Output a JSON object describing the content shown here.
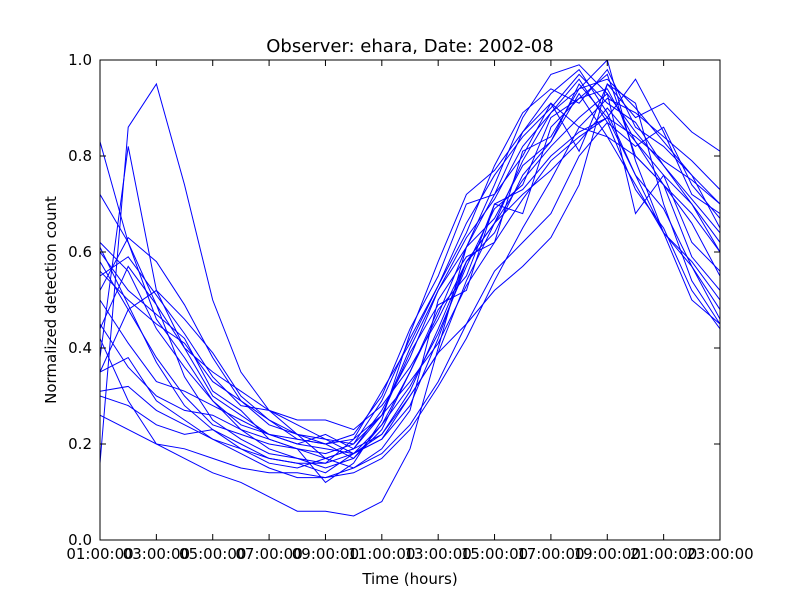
{
  "chart_data": {
    "type": "line",
    "title": "Observer: ehara, Date: 2002-08",
    "xlabel": "Time (hours)",
    "ylabel": "Normalized detection count",
    "xlim": [
      1,
      23
    ],
    "ylim": [
      0.0,
      1.0
    ],
    "x_tick_labels": [
      "01:00:00",
      "03:00:00",
      "05:00:00",
      "07:00:00",
      "09:00:00",
      "11:00:00",
      "13:00:00",
      "15:00:00",
      "17:00:00",
      "19:00:00",
      "21:00:00",
      "23:00:00"
    ],
    "y_tick_labels": [
      "0.0",
      "0.2",
      "0.4",
      "0.6",
      "0.8",
      "1.0"
    ],
    "x": [
      1,
      2,
      3,
      4,
      5,
      6,
      7,
      8,
      9,
      10,
      11,
      12,
      13,
      14,
      15,
      16,
      17,
      18,
      19,
      20,
      21,
      22,
      23
    ],
    "grid": false,
    "line_color": "#0000ff",
    "series": [
      {
        "values": [
          0.62,
          0.56,
          0.44,
          0.36,
          0.29,
          0.24,
          0.22,
          0.2,
          0.19,
          0.18,
          0.21,
          0.28,
          0.42,
          0.58,
          0.66,
          0.75,
          0.82,
          0.88,
          0.93,
          0.85,
          0.78,
          0.7,
          0.6
        ]
      },
      {
        "values": [
          0.35,
          0.48,
          0.52,
          0.4,
          0.3,
          0.26,
          0.22,
          0.21,
          0.2,
          0.17,
          0.24,
          0.35,
          0.48,
          0.55,
          0.7,
          0.68,
          0.86,
          0.92,
          0.97,
          0.8,
          0.74,
          0.66,
          0.55
        ]
      },
      {
        "values": [
          0.58,
          0.48,
          0.38,
          0.3,
          0.24,
          0.22,
          0.2,
          0.19,
          0.18,
          0.2,
          0.26,
          0.4,
          0.52,
          0.63,
          0.71,
          0.82,
          0.89,
          0.94,
          0.96,
          0.9,
          0.83,
          0.76,
          0.65
        ]
      },
      {
        "values": [
          0.45,
          0.36,
          0.3,
          0.27,
          0.26,
          0.23,
          0.21,
          0.19,
          0.17,
          0.19,
          0.22,
          0.31,
          0.44,
          0.58,
          0.64,
          0.76,
          0.83,
          0.95,
          0.88,
          0.76,
          0.69,
          0.57,
          0.48
        ]
      },
      {
        "values": [
          0.72,
          0.62,
          0.49,
          0.34,
          0.25,
          0.21,
          0.18,
          0.17,
          0.15,
          0.17,
          0.23,
          0.35,
          0.47,
          0.61,
          0.72,
          0.8,
          0.91,
          0.86,
          0.84,
          0.74,
          0.64,
          0.58,
          0.5
        ]
      },
      {
        "values": [
          0.3,
          0.28,
          0.24,
          0.22,
          0.23,
          0.2,
          0.17,
          0.16,
          0.14,
          0.18,
          0.21,
          0.3,
          0.39,
          0.54,
          0.66,
          0.72,
          0.77,
          0.83,
          0.9,
          0.83,
          0.76,
          0.7,
          0.62
        ]
      },
      {
        "values": [
          0.16,
          0.86,
          0.95,
          0.74,
          0.5,
          0.35,
          0.27,
          0.22,
          0.17,
          0.15,
          0.19,
          0.27,
          0.5,
          0.59,
          0.62,
          0.81,
          0.84,
          0.94,
          1.0,
          0.79,
          0.64,
          0.57,
          0.46
        ]
      },
      {
        "values": [
          0.5,
          0.41,
          0.33,
          0.31,
          0.28,
          0.25,
          0.22,
          0.2,
          0.22,
          0.19,
          0.26,
          0.39,
          0.49,
          0.52,
          0.7,
          0.73,
          0.8,
          0.85,
          0.88,
          0.96,
          0.85,
          0.72,
          0.68
        ]
      },
      {
        "values": [
          0.42,
          0.29,
          0.2,
          0.17,
          0.14,
          0.12,
          0.09,
          0.06,
          0.06,
          0.05,
          0.08,
          0.19,
          0.4,
          0.61,
          0.74,
          0.88,
          0.97,
          0.99,
          0.93,
          0.68,
          0.76,
          0.62,
          0.56
        ]
      },
      {
        "values": [
          0.6,
          0.52,
          0.47,
          0.42,
          0.31,
          0.27,
          0.21,
          0.19,
          0.12,
          0.16,
          0.25,
          0.43,
          0.58,
          0.72,
          0.77,
          0.85,
          0.91,
          0.81,
          0.95,
          0.91,
          0.7,
          0.54,
          0.45
        ]
      },
      {
        "values": [
          0.26,
          0.23,
          0.2,
          0.19,
          0.17,
          0.15,
          0.14,
          0.14,
          0.13,
          0.15,
          0.18,
          0.24,
          0.33,
          0.45,
          0.56,
          0.62,
          0.68,
          0.8,
          0.87,
          0.82,
          0.86,
          0.74,
          0.67
        ]
      },
      {
        "values": [
          0.38,
          0.82,
          0.52,
          0.46,
          0.39,
          0.3,
          0.25,
          0.21,
          0.2,
          0.22,
          0.3,
          0.44,
          0.55,
          0.7,
          0.72,
          0.85,
          0.93,
          0.98,
          0.89,
          0.76,
          0.64,
          0.5,
          0.45
        ]
      },
      {
        "values": [
          0.55,
          0.59,
          0.51,
          0.43,
          0.34,
          0.28,
          0.27,
          0.24,
          0.21,
          0.2,
          0.29,
          0.42,
          0.53,
          0.66,
          0.76,
          0.84,
          0.9,
          0.97,
          0.91,
          0.87,
          0.78,
          0.71,
          0.64
        ]
      },
      {
        "values": [
          0.61,
          0.49,
          0.37,
          0.28,
          0.23,
          0.19,
          0.16,
          0.15,
          0.17,
          0.19,
          0.27,
          0.38,
          0.52,
          0.61,
          0.67,
          0.78,
          0.83,
          0.93,
          0.84,
          0.8,
          0.74,
          0.68,
          0.6
        ]
      },
      {
        "values": [
          0.83,
          0.62,
          0.46,
          0.38,
          0.29,
          0.23,
          0.19,
          0.17,
          0.16,
          0.21,
          0.31,
          0.41,
          0.53,
          0.64,
          0.78,
          0.89,
          0.94,
          0.91,
          0.98,
          0.86,
          0.82,
          0.76,
          0.7
        ]
      },
      {
        "values": [
          0.35,
          0.38,
          0.29,
          0.25,
          0.21,
          0.19,
          0.17,
          0.16,
          0.16,
          0.18,
          0.22,
          0.3,
          0.39,
          0.45,
          0.52,
          0.57,
          0.63,
          0.74,
          0.95,
          0.88,
          0.91,
          0.85,
          0.81
        ]
      },
      {
        "values": [
          0.44,
          0.57,
          0.49,
          0.4,
          0.35,
          0.31,
          0.27,
          0.25,
          0.25,
          0.23,
          0.28,
          0.36,
          0.46,
          0.58,
          0.66,
          0.79,
          0.89,
          0.96,
          0.87,
          0.73,
          0.65,
          0.52,
          0.44
        ]
      },
      {
        "values": [
          0.31,
          0.32,
          0.27,
          0.24,
          0.21,
          0.18,
          0.15,
          0.13,
          0.13,
          0.14,
          0.17,
          0.23,
          0.32,
          0.42,
          0.54,
          0.65,
          0.75,
          0.86,
          0.92,
          0.89,
          0.84,
          0.79,
          0.73
        ]
      },
      {
        "values": [
          0.52,
          0.63,
          0.58,
          0.49,
          0.38,
          0.29,
          0.25,
          0.22,
          0.21,
          0.18,
          0.24,
          0.32,
          0.43,
          0.57,
          0.69,
          0.74,
          0.88,
          0.92,
          0.94,
          0.83,
          0.74,
          0.59,
          0.52
        ]
      },
      {
        "values": [
          0.56,
          0.5,
          0.45,
          0.41,
          0.33,
          0.29,
          0.24,
          0.22,
          0.2,
          0.21,
          0.26,
          0.33,
          0.41,
          0.53,
          0.62,
          0.71,
          0.79,
          0.84,
          0.88,
          0.84,
          0.79,
          0.75,
          0.7
        ]
      }
    ]
  }
}
